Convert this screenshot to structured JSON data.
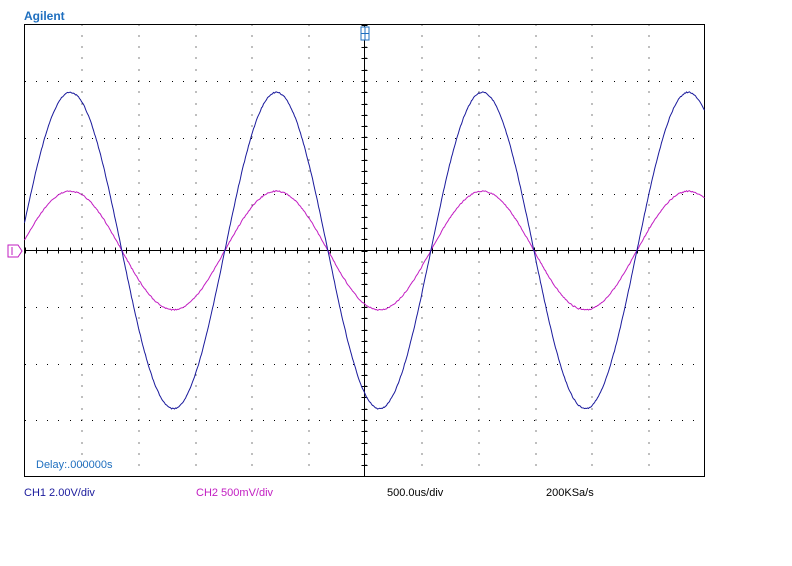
{
  "brand": "Agilent",
  "status": {
    "ch1": "CH1 2.00V/div",
    "ch2": "CH2 500mV/div",
    "timebase": "500.0us/div",
    "sample_rate": "200KSa/s"
  },
  "delay": "Delay:.000000s",
  "colors": {
    "ch1": "#1a1a9c",
    "ch2": "#c21ec2",
    "grid": "#000000",
    "brand": "#1f6fbf"
  },
  "icons": {
    "trigger_marker": "trigger-position-icon",
    "ground_marker": "channel-ground-icon"
  },
  "chart_data": {
    "type": "line",
    "grid": true,
    "x_divisions": 12,
    "y_divisions": 8,
    "x_range_div": [
      -6,
      6
    ],
    "y_range_div": [
      -4,
      4
    ],
    "series": [
      {
        "name": "CH1",
        "frequency_hz": 550,
        "amplitude_div": 2.8,
        "phase_deg": 10
      },
      {
        "name": "CH2",
        "frequency_hz": 550,
        "amplitude_div": 1.05,
        "phase_deg": 10
      }
    ]
  }
}
